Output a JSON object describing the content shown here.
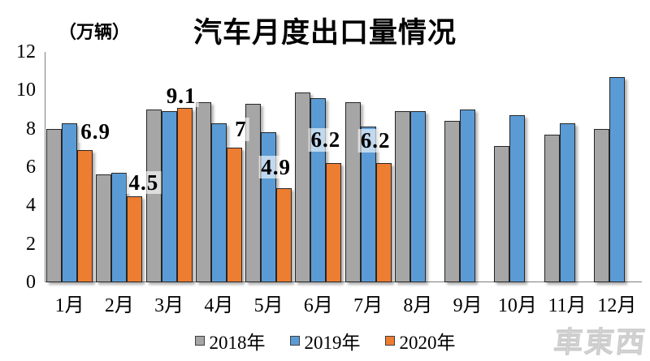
{
  "title": "汽车月度出口量情况",
  "unit_label": "（万辆）",
  "watermark": "車東西",
  "chart_data": {
    "type": "bar",
    "title": "汽车月度出口量情况",
    "ylabel": "（万辆）",
    "ylim": [
      0,
      12
    ],
    "yticks": [
      0,
      2,
      4,
      6,
      8,
      10,
      12
    ],
    "grid": false,
    "legend_position": "bottom",
    "categories": [
      "1月",
      "2月",
      "3月",
      "4月",
      "5月",
      "6月",
      "7月",
      "8月",
      "9月",
      "10月",
      "11月",
      "12月"
    ],
    "series": [
      {
        "name": "2018年",
        "color": "#a6a6a6",
        "values": [
          8.0,
          5.6,
          9.0,
          9.4,
          9.3,
          9.9,
          9.4,
          8.9,
          8.4,
          7.1,
          7.7,
          8.0
        ]
      },
      {
        "name": "2019年",
        "color": "#5b9bd5",
        "values": [
          8.3,
          5.7,
          8.9,
          8.3,
          7.8,
          9.6,
          8.1,
          8.9,
          9.0,
          8.7,
          8.3,
          10.7
        ]
      },
      {
        "name": "2020年",
        "color": "#ed7d31",
        "values": [
          6.9,
          4.5,
          9.1,
          7.0,
          4.9,
          6.2,
          6.2,
          null,
          null,
          null,
          null,
          null
        ],
        "data_labels": [
          "6.9",
          "4.5",
          "9.1",
          "7",
          "4.9",
          "6.2",
          "6.2"
        ]
      }
    ]
  }
}
